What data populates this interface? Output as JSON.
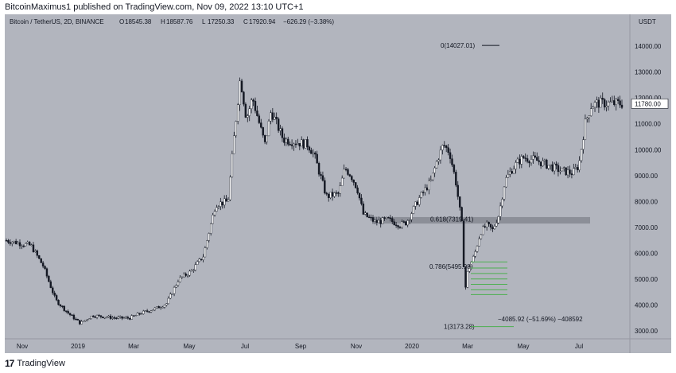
{
  "header": {
    "published": "BitcoinMaximus1 published on TradingView.com, Nov 09, 2022 13:10 UTC+1"
  },
  "footer": {
    "logo": "17",
    "brand": "TradingView"
  },
  "chart_data": {
    "type": "candlestick",
    "symbol_line": {
      "name": "Bitcoin / TetherUS, 2D, BINANCE",
      "o_label": "O",
      "o_value": "18545.38",
      "h_label": "H",
      "h_value": "18587.76",
      "l_label": "L",
      "l_value": "17250.33",
      "c_label": "C",
      "c_value": "17920.94",
      "change": "−626.29 (−3.38%)"
    },
    "currency": "USDT",
    "ylim": [
      2700,
      14800
    ],
    "y_ticks": [
      "14000.00",
      "13000.00",
      "12000.00",
      "11000.00",
      "10000.00",
      "9000.00",
      "8000.00",
      "7000.00",
      "6000.00",
      "5000.00",
      "4000.00",
      "3000.00"
    ],
    "x_ticks": [
      "Nov",
      "2019",
      "Mar",
      "May",
      "Jul",
      "Sep",
      "Nov",
      "2020",
      "Mar",
      "May",
      "Jul"
    ],
    "price_label": "11780.00",
    "price_path": [
      [
        0,
        6500
      ],
      [
        0.02,
        6400
      ],
      [
        0.04,
        6300
      ],
      [
        0.06,
        5500
      ],
      [
        0.08,
        4200
      ],
      [
        0.1,
        3700
      ],
      [
        0.12,
        3300
      ],
      [
        0.14,
        3600
      ],
      [
        0.16,
        3550
      ],
      [
        0.18,
        3500
      ],
      [
        0.2,
        3500
      ],
      [
        0.22,
        3700
      ],
      [
        0.24,
        3850
      ],
      [
        0.26,
        4050
      ],
      [
        0.28,
        5000
      ],
      [
        0.3,
        5300
      ],
      [
        0.32,
        5900
      ],
      [
        0.34,
        7900
      ],
      [
        0.36,
        8000
      ],
      [
        0.37,
        10500
      ],
      [
        0.38,
        12800
      ],
      [
        0.39,
        11200
      ],
      [
        0.4,
        12000
      ],
      [
        0.42,
        10200
      ],
      [
        0.43,
        11500
      ],
      [
        0.45,
        10400
      ],
      [
        0.47,
        10300
      ],
      [
        0.49,
        10200
      ],
      [
        0.5,
        9800
      ],
      [
        0.52,
        8200
      ],
      [
        0.54,
        8300
      ],
      [
        0.55,
        9300
      ],
      [
        0.56,
        9000
      ],
      [
        0.57,
        8500
      ],
      [
        0.58,
        7500
      ],
      [
        0.6,
        7200
      ],
      [
        0.62,
        7300
      ],
      [
        0.64,
        7100
      ],
      [
        0.65,
        7200
      ],
      [
        0.67,
        8100
      ],
      [
        0.69,
        8800
      ],
      [
        0.7,
        9600
      ],
      [
        0.71,
        10200
      ],
      [
        0.72,
        9900
      ],
      [
        0.73,
        8800
      ],
      [
        0.74,
        7100
      ],
      [
        0.745,
        4500
      ],
      [
        0.75,
        5400
      ],
      [
        0.76,
        5900
      ],
      [
        0.77,
        6800
      ],
      [
        0.78,
        7100
      ],
      [
        0.79,
        6900
      ],
      [
        0.8,
        7500
      ],
      [
        0.81,
        8800
      ],
      [
        0.82,
        9200
      ],
      [
        0.83,
        9500
      ],
      [
        0.84,
        9700
      ],
      [
        0.86,
        9600
      ],
      [
        0.88,
        9400
      ],
      [
        0.9,
        9200
      ],
      [
        0.92,
        9100
      ],
      [
        0.93,
        9400
      ],
      [
        0.94,
        11000
      ],
      [
        0.95,
        11700
      ],
      [
        0.96,
        11800
      ],
      [
        1.0,
        11780
      ]
    ],
    "fib_labels": [
      {
        "label": "0(14027.01)",
        "price": 14027.01
      },
      {
        "label": "0.618(7319.41)",
        "price": 7319.41
      },
      {
        "label": "0.786(5495.98)",
        "price": 5495.98
      },
      {
        "label": "1(3173.28)",
        "price": 3173.28
      }
    ],
    "measure_label": "−4085.92 (−51.69%) −408592",
    "resistance_zone": [
      7150,
      7400
    ],
    "accent_colors": {
      "up": "#ffffff",
      "down": "#131722",
      "fib": "#4caf50",
      "zone": "#6e7079"
    }
  }
}
